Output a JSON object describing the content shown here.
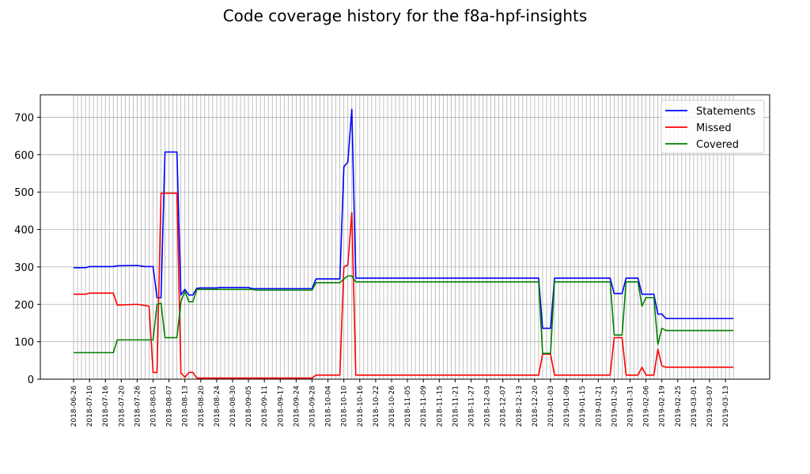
{
  "chart_data": {
    "type": "line",
    "title": "Code coverage history for the f8a-hpf-insights",
    "xlabel": "",
    "ylabel": "",
    "ylim": [
      0,
      760
    ],
    "y_ticks": [
      0,
      100,
      200,
      300,
      400,
      500,
      600,
      700
    ],
    "x_tick_labels": [
      "2018-06-26",
      "2018-07-10",
      "2018-07-16",
      "2018-07-20",
      "2018-07-26",
      "2018-08-01",
      "2018-08-07",
      "2018-08-13",
      "2018-08-20",
      "2018-08-24",
      "2018-08-30",
      "2018-09-05",
      "2018-09-11",
      "2018-09-17",
      "2018-09-24",
      "2018-09-28",
      "2018-10-04",
      "2018-10-10",
      "2018-10-16",
      "2018-10-22",
      "2018-10-26",
      "2018-11-05",
      "2018-11-09",
      "2018-11-15",
      "2018-11-21",
      "2018-11-27",
      "2018-12-03",
      "2018-12-07",
      "2018-12-13",
      "2018-12-20",
      "2019-01-03",
      "2019-01-09",
      "2019-01-15",
      "2019-01-21",
      "2019-01-25",
      "2019-01-31",
      "2019-02-06",
      "2019-02-19",
      "2019-02-25",
      "2019-03-01",
      "2019-03-07",
      "2019-03-13"
    ],
    "grid": true,
    "legend_position": "top-right",
    "series": [
      {
        "name": "Statements",
        "color": "#0000ff",
        "points": [
          [
            0,
            298
          ],
          [
            3,
            298
          ],
          [
            4,
            301
          ],
          [
            10,
            301
          ],
          [
            11,
            303
          ],
          [
            16,
            304
          ],
          [
            18,
            301
          ],
          [
            20,
            301
          ],
          [
            21,
            218
          ],
          [
            22,
            218
          ],
          [
            23,
            607
          ],
          [
            26,
            607
          ],
          [
            27,
            225
          ],
          [
            28,
            240
          ],
          [
            29,
            225
          ],
          [
            30,
            225
          ],
          [
            31,
            243
          ],
          [
            32,
            244
          ],
          [
            36,
            244
          ],
          [
            37,
            245
          ],
          [
            44,
            245
          ],
          [
            45,
            242
          ],
          [
            60,
            242
          ],
          [
            61,
            268
          ],
          [
            67,
            268
          ],
          [
            68,
            568
          ],
          [
            69,
            580
          ],
          [
            70,
            721
          ],
          [
            71,
            270
          ],
          [
            117,
            270
          ],
          [
            118,
            136
          ],
          [
            120,
            136
          ],
          [
            121,
            270
          ],
          [
            135,
            270
          ],
          [
            136,
            229
          ],
          [
            138,
            229
          ],
          [
            139,
            270
          ],
          [
            142,
            270
          ],
          [
            143,
            227
          ],
          [
            146,
            227
          ],
          [
            147,
            174
          ],
          [
            148,
            174
          ],
          [
            149,
            162
          ],
          [
            166,
            162
          ]
        ]
      },
      {
        "name": "Missed",
        "color": "#ff0000",
        "points": [
          [
            0,
            227
          ],
          [
            3,
            227
          ],
          [
            4,
            230
          ],
          [
            10,
            230
          ],
          [
            11,
            198
          ],
          [
            16,
            200
          ],
          [
            18,
            197
          ],
          [
            19,
            195
          ],
          [
            20,
            18
          ],
          [
            21,
            18
          ],
          [
            22,
            497
          ],
          [
            26,
            497
          ],
          [
            27,
            17
          ],
          [
            28,
            5
          ],
          [
            29,
            18
          ],
          [
            30,
            18
          ],
          [
            31,
            3
          ],
          [
            60,
            3
          ],
          [
            61,
            11
          ],
          [
            67,
            11
          ],
          [
            68,
            300
          ],
          [
            69,
            305
          ],
          [
            70,
            445
          ],
          [
            71,
            11
          ],
          [
            117,
            11
          ],
          [
            118,
            67
          ],
          [
            120,
            67
          ],
          [
            121,
            11
          ],
          [
            135,
            11
          ],
          [
            136,
            111
          ],
          [
            138,
            111
          ],
          [
            139,
            11
          ],
          [
            142,
            11
          ],
          [
            143,
            32
          ],
          [
            144,
            11
          ],
          [
            146,
            11
          ],
          [
            147,
            80
          ],
          [
            148,
            36
          ],
          [
            149,
            32
          ],
          [
            166,
            32
          ]
        ]
      },
      {
        "name": "Covered",
        "color": "#008000",
        "points": [
          [
            0,
            71
          ],
          [
            10,
            71
          ],
          [
            11,
            105
          ],
          [
            20,
            105
          ],
          [
            21,
            200
          ],
          [
            22,
            203
          ],
          [
            23,
            111
          ],
          [
            26,
            111
          ],
          [
            27,
            207
          ],
          [
            28,
            235
          ],
          [
            29,
            207
          ],
          [
            30,
            207
          ],
          [
            31,
            240
          ],
          [
            45,
            240
          ],
          [
            46,
            238
          ],
          [
            60,
            238
          ],
          [
            61,
            258
          ],
          [
            67,
            258
          ],
          [
            68,
            268
          ],
          [
            69,
            276
          ],
          [
            70,
            276
          ],
          [
            71,
            260
          ],
          [
            117,
            260
          ],
          [
            118,
            69
          ],
          [
            120,
            69
          ],
          [
            121,
            260
          ],
          [
            135,
            260
          ],
          [
            136,
            118
          ],
          [
            138,
            118
          ],
          [
            139,
            260
          ],
          [
            142,
            260
          ],
          [
            143,
            195
          ],
          [
            144,
            218
          ],
          [
            146,
            218
          ],
          [
            147,
            93
          ],
          [
            148,
            136
          ],
          [
            149,
            130
          ],
          [
            166,
            130
          ]
        ]
      }
    ]
  }
}
